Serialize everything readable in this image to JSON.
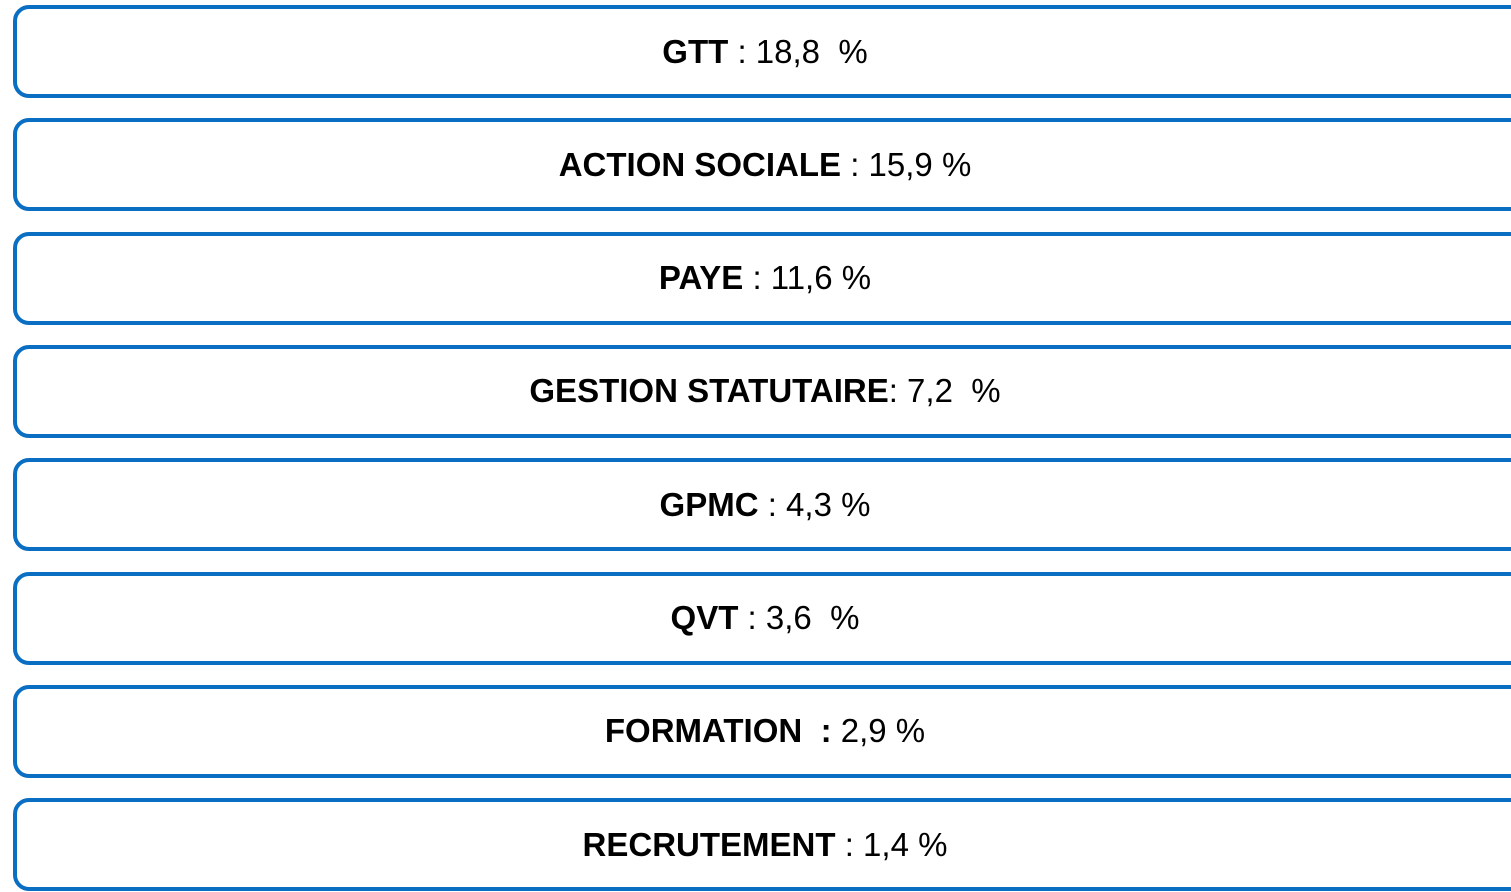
{
  "items": [
    {
      "label": "GTT",
      "value": " : 18,8  %"
    },
    {
      "label": "ACTION SOCIALE",
      "value": " : 15,9 %"
    },
    {
      "label": "PAYE",
      "value": " : 11,6 %"
    },
    {
      "label": "GESTION STATUTAIRE",
      "value": ": 7,2  %"
    },
    {
      "label": "GPMC",
      "value": " : 4,3 %"
    },
    {
      "label": "QVT",
      "value": " : 3,6  %"
    },
    {
      "label": "FORMATION  :",
      "value": " 2,9 %"
    },
    {
      "label": "RECRUTEMENT",
      "value": " : 1,4 %"
    }
  ]
}
